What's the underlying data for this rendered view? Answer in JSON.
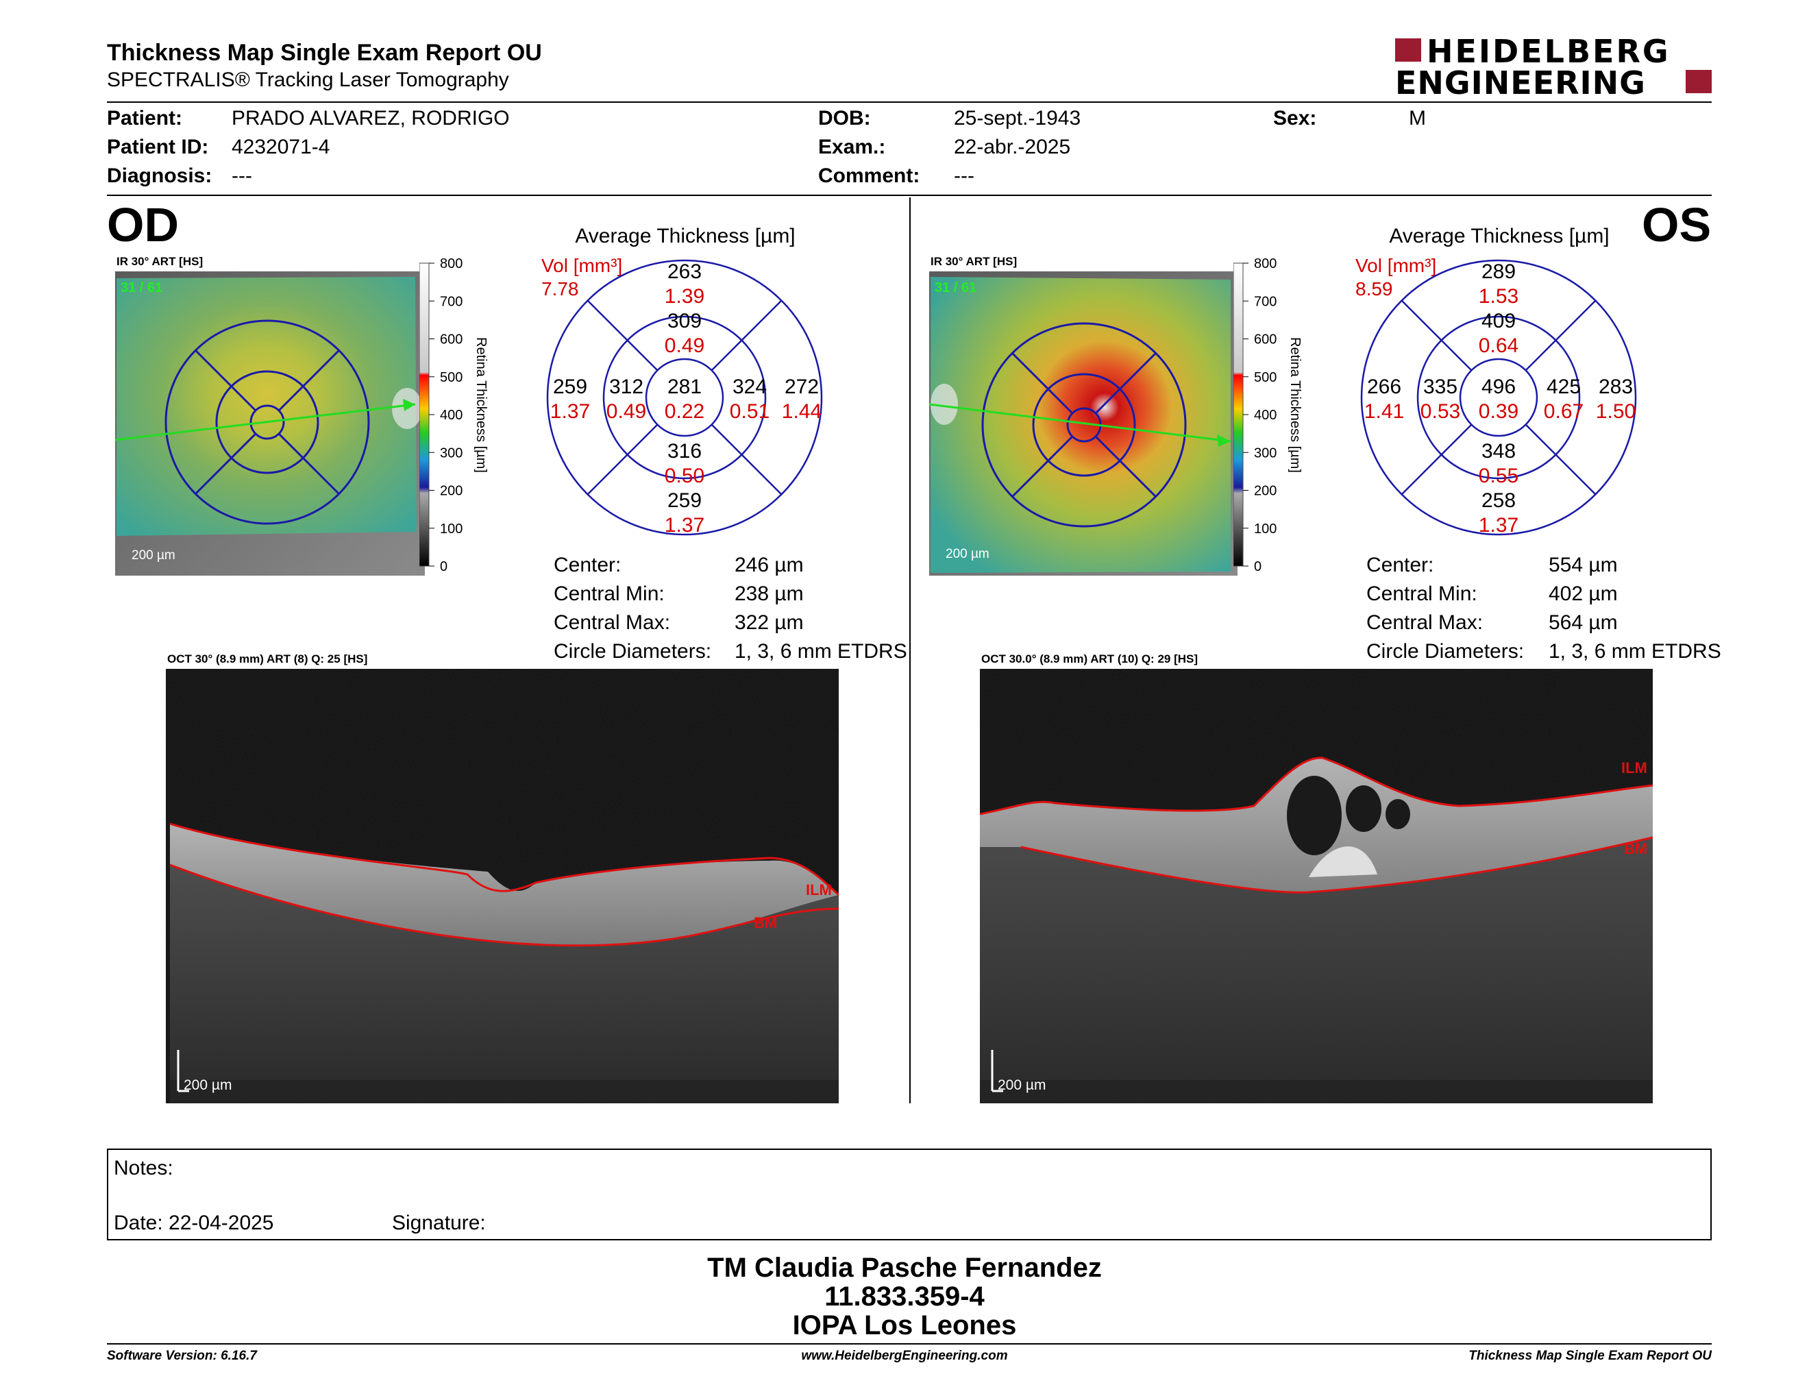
{
  "header": {
    "title": "Thickness Map Single Exam Report OU",
    "subtitle": "SPECTRALIS® Tracking Laser Tomography",
    "logo_line1": "HEIDELBERG",
    "logo_line2": "ENGINEERING",
    "logo_color": "#9b1b30"
  },
  "patient": {
    "patient_label": "Patient:",
    "patient_value": "PRADO ALVAREZ, RODRIGO",
    "id_label": "Patient ID:",
    "id_value": "4232071-4",
    "diagnosis_label": "Diagnosis:",
    "diagnosis_value": "---",
    "dob_label": "DOB:",
    "dob_value": "25-sept.-1943",
    "exam_label": "Exam.:",
    "exam_value": "22-abr.-2025",
    "comment_label": "Comment:",
    "comment_value": "---",
    "sex_label": "Sex:",
    "sex_value": "M"
  },
  "od": {
    "eye": "OD",
    "ir_label": "IR 30° ART [HS]",
    "frame": "31 / 61",
    "scale": "200 µm",
    "scalebar": [
      "800",
      "700",
      "600",
      "500",
      "400",
      "300",
      "200",
      "100",
      "0"
    ],
    "scalebar_title": "Retina  Thickness [µm]",
    "avg_title": "Average Thickness [µm]",
    "vol_label": "Vol [mm³]",
    "vol_value": "7.78",
    "sectors": {
      "center": {
        "t": "281",
        "v": "0.22"
      },
      "inner_top": {
        "t": "309",
        "v": "0.49"
      },
      "inner_left": {
        "t": "312",
        "v": "0.49"
      },
      "inner_right": {
        "t": "324",
        "v": "0.51"
      },
      "inner_bottom": {
        "t": "316",
        "v": "0.50"
      },
      "outer_top": {
        "t": "263",
        "v": "1.39"
      },
      "outer_left": {
        "t": "259",
        "v": "1.37"
      },
      "outer_right": {
        "t": "272",
        "v": "1.44"
      },
      "outer_bottom": {
        "t": "259",
        "v": "1.37"
      }
    },
    "stats": {
      "center_label": "Center:",
      "center_value": "246 µm",
      "min_label": "Central Min:",
      "min_value": "238 µm",
      "max_label": "Central Max:",
      "max_value": "322 µm",
      "diam_label": "Circle Diameters:",
      "diam_value": "1, 3, 6 mm ETDRS"
    },
    "oct_label": "OCT 30° (8.9 mm) ART (8) Q: 25 [HS]",
    "ilm": "ILM",
    "bm": "BM",
    "oct_scale": "200 µm"
  },
  "os": {
    "eye": "OS",
    "ir_label": "IR 30° ART [HS]",
    "frame": "31 / 61",
    "scale": "200 µm",
    "scalebar": [
      "800",
      "700",
      "600",
      "500",
      "400",
      "300",
      "200",
      "100",
      "0"
    ],
    "scalebar_title": "Retina  Thickness [µm]",
    "avg_title": "Average Thickness [µm]",
    "vol_label": "Vol [mm³]",
    "vol_value": "8.59",
    "sectors": {
      "center": {
        "t": "496",
        "v": "0.39"
      },
      "inner_top": {
        "t": "409",
        "v": "0.64"
      },
      "inner_left": {
        "t": "335",
        "v": "0.53"
      },
      "inner_right": {
        "t": "425",
        "v": "0.67"
      },
      "inner_bottom": {
        "t": "348",
        "v": "0.55"
      },
      "outer_top": {
        "t": "289",
        "v": "1.53"
      },
      "outer_left": {
        "t": "266",
        "v": "1.41"
      },
      "outer_right": {
        "t": "283",
        "v": "1.50"
      },
      "outer_bottom": {
        "t": "258",
        "v": "1.37"
      }
    },
    "stats": {
      "center_label": "Center:",
      "center_value": "554 µm",
      "min_label": "Central Min:",
      "min_value": "402 µm",
      "max_label": "Central Max:",
      "max_value": "564 µm",
      "diam_label": "Circle Diameters:",
      "diam_value": "1, 3, 6 mm ETDRS"
    },
    "oct_label": "OCT 30.0° (8.9 mm) ART (10) Q: 29 [HS]",
    "ilm": "ILM",
    "bm": "BM",
    "oct_scale": "200 µm"
  },
  "notes": {
    "notes_label": "Notes:",
    "date_label": "Date: 22-04-2025",
    "signature_label": "Signature:"
  },
  "signature_block": {
    "line1": "TM Claudia Pasche Fernandez",
    "line2": "11.833.359-4",
    "line3": "IOPA Los Leones"
  },
  "footer": {
    "left": "Software Version: 6.16.7",
    "center": "www.HeidelbergEngineering.com",
    "right": "Thickness Map Single Exam Report OU"
  }
}
